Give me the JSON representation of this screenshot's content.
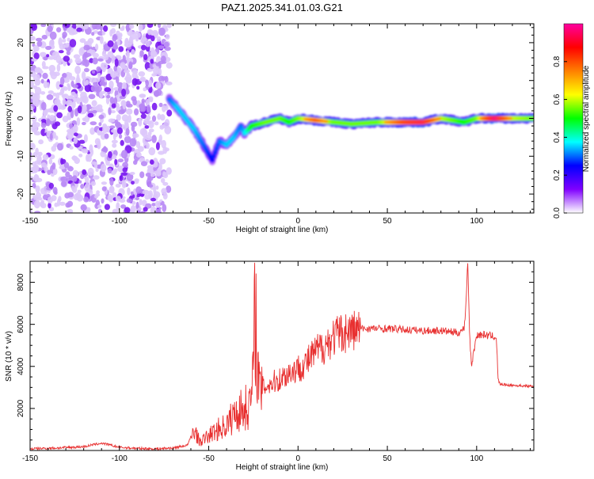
{
  "title": "PAZ1.2025.341.01.03.G21",
  "chart_data": [
    {
      "type": "heatmap",
      "xlabel": "Height of straight line (km)",
      "ylabel": "Frequency (Hz)",
      "xlim": [
        -150,
        132
      ],
      "ylim": [
        -25,
        25
      ],
      "x_ticks": [
        -150,
        -100,
        -50,
        0,
        50,
        100
      ],
      "y_ticks": [
        -20,
        -10,
        0,
        10,
        20
      ],
      "colorbar": {
        "label": "Normalized spectral amplitude",
        "range": [
          0,
          1
        ],
        "ticks": [
          0.0,
          0.2,
          0.4,
          0.6,
          0.8
        ],
        "tick_labels": [
          "0.0",
          "0.2",
          "0.4",
          "0.6",
          "0.8"
        ],
        "colors": [
          "#ffffff",
          "#8000ff",
          "#0000ff",
          "#00ffff",
          "#00ff00",
          "#ffff00",
          "#ff8000",
          "#ff0000",
          "#ff00a0"
        ]
      },
      "noise_region": {
        "x_range": [
          -150,
          -72
        ],
        "level": 0.12
      },
      "ridge": [
        {
          "x": -72,
          "y": 5,
          "amp": 0.3
        },
        {
          "x": -68,
          "y": 3,
          "amp": 0.35
        },
        {
          "x": -63,
          "y": 0,
          "amp": 0.35
        },
        {
          "x": -58,
          "y": -3,
          "amp": 0.35
        },
        {
          "x": -53,
          "y": -7,
          "amp": 0.3
        },
        {
          "x": -48,
          "y": -11,
          "amp": 0.25
        },
        {
          "x": -44,
          "y": -6,
          "amp": 0.3
        },
        {
          "x": -40,
          "y": -7,
          "amp": 0.35
        },
        {
          "x": -36,
          "y": -5,
          "amp": 0.35
        },
        {
          "x": -32,
          "y": -2,
          "amp": 0.3
        },
        {
          "x": -30,
          "y": -4,
          "amp": 0.35
        },
        {
          "x": -26,
          "y": -2,
          "amp": 0.5
        },
        {
          "x": -18,
          "y": -1,
          "amp": 0.55
        },
        {
          "x": -10,
          "y": 0,
          "amp": 0.55
        },
        {
          "x": -5,
          "y": -1,
          "amp": 0.5
        },
        {
          "x": 0,
          "y": 0,
          "amp": 0.55
        },
        {
          "x": 10,
          "y": -0.5,
          "amp": 0.7
        },
        {
          "x": 20,
          "y": -1,
          "amp": 0.55
        },
        {
          "x": 30,
          "y": -1.5,
          "amp": 0.55
        },
        {
          "x": 45,
          "y": -1,
          "amp": 0.55
        },
        {
          "x": 60,
          "y": -1,
          "amp": 0.75
        },
        {
          "x": 70,
          "y": -1,
          "amp": 0.8
        },
        {
          "x": 80,
          "y": 0,
          "amp": 0.6
        },
        {
          "x": 93,
          "y": -1,
          "amp": 0.5
        },
        {
          "x": 100,
          "y": 0,
          "amp": 0.55
        },
        {
          "x": 110,
          "y": 0,
          "amp": 0.85
        },
        {
          "x": 120,
          "y": 0,
          "amp": 0.6
        },
        {
          "x": 132,
          "y": 0,
          "amp": 0.55
        }
      ]
    },
    {
      "type": "line",
      "xlabel": "Height of straight line (km)",
      "ylabel": "SNR (10 * v/v)",
      "xlim": [
        -150,
        132
      ],
      "ylim": [
        0,
        9000
      ],
      "x_ticks": [
        -150,
        -100,
        -50,
        0,
        50,
        100
      ],
      "y_ticks": [
        2000,
        4000,
        6000,
        8000
      ],
      "series": [
        {
          "name": "SNR",
          "color": "#e83030",
          "x": [
            -150,
            -135,
            -120,
            -110,
            -100,
            -90,
            -80,
            -70,
            -62,
            -58,
            -55,
            -50,
            -45,
            -40,
            -35,
            -30,
            -27,
            -25,
            -24,
            -22,
            -20,
            -15,
            -10,
            -5,
            0,
            5,
            10,
            15,
            20,
            25,
            30,
            35,
            40,
            50,
            60,
            70,
            80,
            85,
            90,
            93,
            94,
            95,
            96,
            97,
            100,
            105,
            111,
            112,
            113,
            120,
            132
          ],
          "y": [
            80,
            120,
            180,
            350,
            150,
            100,
            80,
            120,
            250,
            1000,
            400,
            700,
            1000,
            1200,
            1800,
            2000,
            2200,
            3500,
            7300,
            2800,
            3000,
            3200,
            3400,
            3700,
            3900,
            4200,
            4700,
            5000,
            5400,
            5600,
            5700,
            5800,
            5800,
            5800,
            5750,
            5700,
            5700,
            5650,
            5600,
            5800,
            7000,
            9000,
            5800,
            4000,
            5500,
            5500,
            5400,
            3400,
            3150,
            3100,
            3050
          ]
        }
      ]
    }
  ]
}
